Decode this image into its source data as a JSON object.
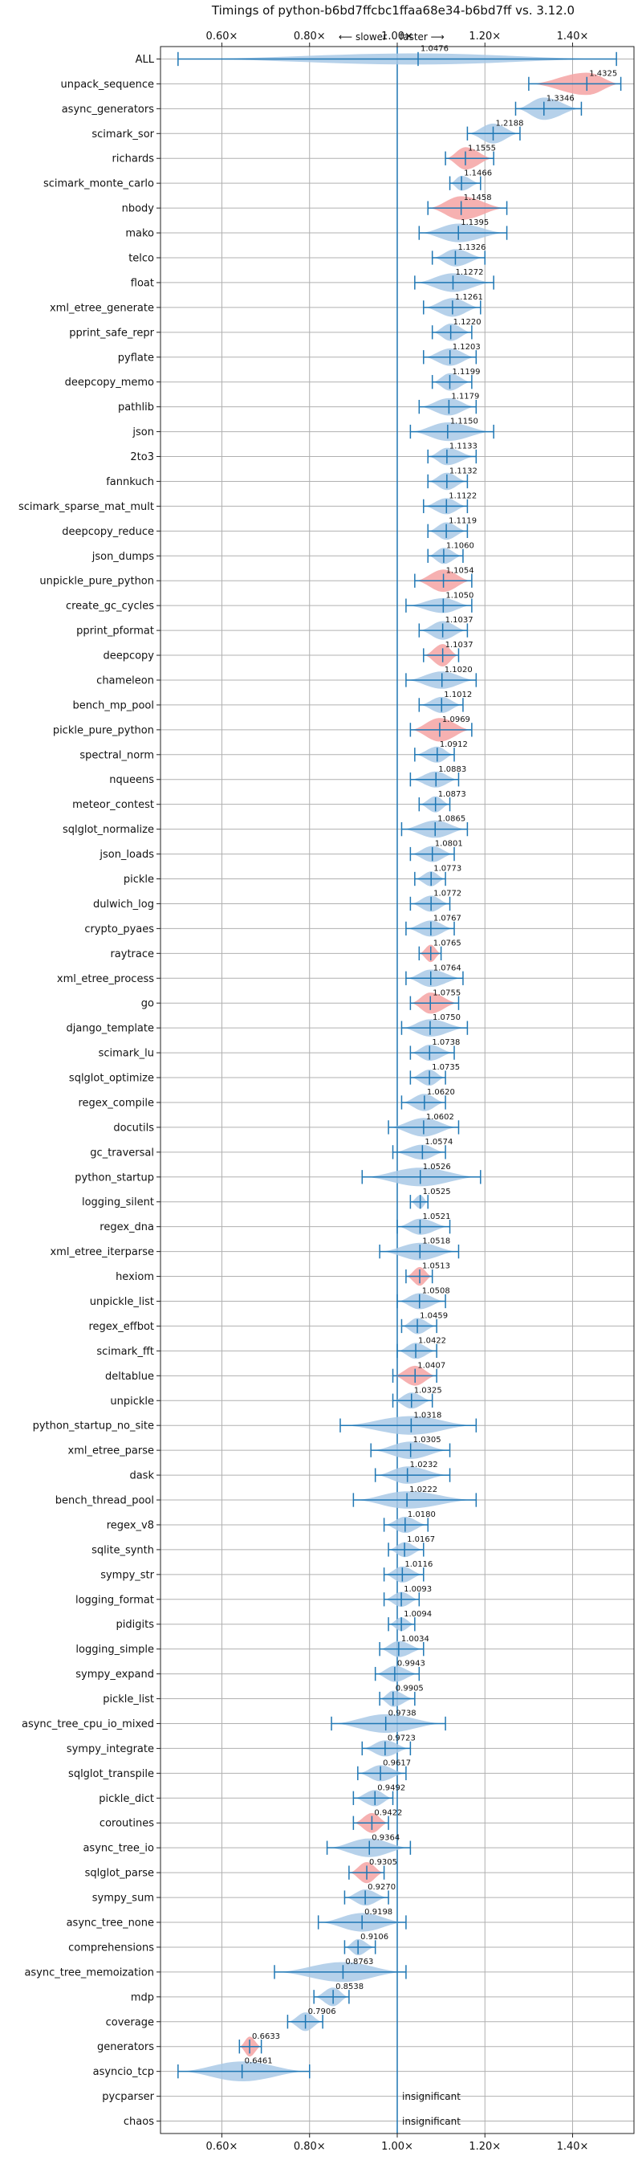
{
  "chart_data": {
    "type": "violin",
    "title": "Timings of python-b6bd7ffcbc1ffaa68e34-b6bd7ff vs. 3.12.0",
    "direction_labels": {
      "slower": "⟵ slower",
      "faster": "faster ⟶"
    },
    "xlim": [
      0.46,
      1.54
    ],
    "ticks": [
      {
        "v": 0.6,
        "label": "0.60×"
      },
      {
        "v": 0.8,
        "label": "0.80×"
      },
      {
        "v": 1.0,
        "label": "1.00×"
      },
      {
        "v": 1.2,
        "label": "1.20×"
      },
      {
        "v": 1.4,
        "label": "1.40×"
      }
    ],
    "reference_line": 1.0,
    "grid": true,
    "colors": {
      "normal": "#a9c9e6",
      "significant": "#f4a3a3",
      "line": "#1f77b4"
    },
    "insignificant_label": "insignificant",
    "benchmarks": [
      {
        "name": "ALL",
        "value": 1.0476,
        "value_label": "1.0476",
        "min": 0.5,
        "max": 1.5,
        "width": 0.45,
        "highlight": false
      },
      {
        "name": "unpack_sequence",
        "value": 1.4325,
        "value_label": "1.4325",
        "min": 1.3,
        "max": 1.51,
        "width": 0.9,
        "highlight": true
      },
      {
        "name": "async_generators",
        "value": 1.3346,
        "value_label": "1.3346",
        "min": 1.27,
        "max": 1.42,
        "width": 0.9,
        "highlight": false
      },
      {
        "name": "scimark_sor",
        "value": 1.2188,
        "value_label": "1.2188",
        "min": 1.16,
        "max": 1.28,
        "width": 0.8,
        "highlight": false
      },
      {
        "name": "richards",
        "value": 1.1555,
        "value_label": "1.1555",
        "min": 1.11,
        "max": 1.22,
        "width": 0.9,
        "highlight": true
      },
      {
        "name": "scimark_monte_carlo",
        "value": 1.1466,
        "value_label": "1.1466",
        "min": 1.12,
        "max": 1.19,
        "width": 0.6,
        "highlight": false
      },
      {
        "name": "nbody",
        "value": 1.1458,
        "value_label": "1.1458",
        "min": 1.07,
        "max": 1.25,
        "width": 0.95,
        "highlight": true
      },
      {
        "name": "mako",
        "value": 1.1395,
        "value_label": "1.1395",
        "min": 1.05,
        "max": 1.25,
        "width": 0.75,
        "highlight": false
      },
      {
        "name": "telco",
        "value": 1.1326,
        "value_label": "1.1326",
        "min": 1.08,
        "max": 1.2,
        "width": 0.7,
        "highlight": false
      },
      {
        "name": "float",
        "value": 1.1272,
        "value_label": "1.1272",
        "min": 1.04,
        "max": 1.22,
        "width": 0.75,
        "highlight": false
      },
      {
        "name": "xml_etree_generate",
        "value": 1.1261,
        "value_label": "1.1261",
        "min": 1.06,
        "max": 1.19,
        "width": 0.75,
        "highlight": false
      },
      {
        "name": "pprint_safe_repr",
        "value": 1.122,
        "value_label": "1.1220",
        "min": 1.08,
        "max": 1.17,
        "width": 0.7,
        "highlight": false
      },
      {
        "name": "pyflate",
        "value": 1.1203,
        "value_label": "1.1203",
        "min": 1.06,
        "max": 1.18,
        "width": 0.7,
        "highlight": false
      },
      {
        "name": "deepcopy_memo",
        "value": 1.1199,
        "value_label": "1.1199",
        "min": 1.08,
        "max": 1.17,
        "width": 0.7,
        "highlight": false
      },
      {
        "name": "pathlib",
        "value": 1.1179,
        "value_label": "1.1179",
        "min": 1.05,
        "max": 1.18,
        "width": 0.7,
        "highlight": false
      },
      {
        "name": "json",
        "value": 1.115,
        "value_label": "1.1150",
        "min": 1.03,
        "max": 1.22,
        "width": 0.75,
        "highlight": false
      },
      {
        "name": "2to3",
        "value": 1.1133,
        "value_label": "1.1133",
        "min": 1.07,
        "max": 1.18,
        "width": 0.7,
        "highlight": false
      },
      {
        "name": "fannkuch",
        "value": 1.1132,
        "value_label": "1.1132",
        "min": 1.07,
        "max": 1.16,
        "width": 0.7,
        "highlight": false
      },
      {
        "name": "scimark_sparse_mat_mult",
        "value": 1.1122,
        "value_label": "1.1122",
        "min": 1.06,
        "max": 1.16,
        "width": 0.65,
        "highlight": false
      },
      {
        "name": "deepcopy_reduce",
        "value": 1.1119,
        "value_label": "1.1119",
        "min": 1.07,
        "max": 1.16,
        "width": 0.7,
        "highlight": false
      },
      {
        "name": "json_dumps",
        "value": 1.106,
        "value_label": "1.1060",
        "min": 1.07,
        "max": 1.15,
        "width": 0.65,
        "highlight": false
      },
      {
        "name": "unpickle_pure_python",
        "value": 1.1054,
        "value_label": "1.1054",
        "min": 1.04,
        "max": 1.17,
        "width": 0.9,
        "highlight": true
      },
      {
        "name": "create_gc_cycles",
        "value": 1.105,
        "value_label": "1.1050",
        "min": 1.02,
        "max": 1.17,
        "width": 0.6,
        "highlight": false
      },
      {
        "name": "pprint_pformat",
        "value": 1.1037,
        "value_label": "1.1037",
        "min": 1.05,
        "max": 1.16,
        "width": 0.75,
        "highlight": false
      },
      {
        "name": "deepcopy",
        "value": 1.1037,
        "value_label": "1.1037",
        "min": 1.06,
        "max": 1.14,
        "width": 0.9,
        "highlight": true
      },
      {
        "name": "chameleon",
        "value": 1.102,
        "value_label": "1.1020",
        "min": 1.02,
        "max": 1.18,
        "width": 0.7,
        "highlight": false
      },
      {
        "name": "bench_mp_pool",
        "value": 1.1012,
        "value_label": "1.1012",
        "min": 1.05,
        "max": 1.15,
        "width": 0.65,
        "highlight": false
      },
      {
        "name": "pickle_pure_python",
        "value": 1.0969,
        "value_label": "1.0969",
        "min": 1.03,
        "max": 1.17,
        "width": 0.95,
        "highlight": true
      },
      {
        "name": "spectral_norm",
        "value": 1.0912,
        "value_label": "1.0912",
        "min": 1.04,
        "max": 1.13,
        "width": 0.65,
        "highlight": false
      },
      {
        "name": "nqueens",
        "value": 1.0883,
        "value_label": "1.0883",
        "min": 1.03,
        "max": 1.14,
        "width": 0.65,
        "highlight": false
      },
      {
        "name": "meteor_contest",
        "value": 1.0873,
        "value_label": "1.0873",
        "min": 1.05,
        "max": 1.12,
        "width": 0.65,
        "highlight": false
      },
      {
        "name": "sqlglot_normalize",
        "value": 1.0865,
        "value_label": "1.0865",
        "min": 1.01,
        "max": 1.16,
        "width": 0.7,
        "highlight": false
      },
      {
        "name": "json_loads",
        "value": 1.0801,
        "value_label": "1.0801",
        "min": 1.03,
        "max": 1.13,
        "width": 0.65,
        "highlight": false
      },
      {
        "name": "pickle",
        "value": 1.0773,
        "value_label": "1.0773",
        "min": 1.04,
        "max": 1.11,
        "width": 0.6,
        "highlight": false
      },
      {
        "name": "dulwich_log",
        "value": 1.0772,
        "value_label": "1.0772",
        "min": 1.03,
        "max": 1.12,
        "width": 0.65,
        "highlight": false
      },
      {
        "name": "crypto_pyaes",
        "value": 1.0767,
        "value_label": "1.0767",
        "min": 1.02,
        "max": 1.13,
        "width": 0.65,
        "highlight": false
      },
      {
        "name": "raytrace",
        "value": 1.0765,
        "value_label": "1.0765",
        "min": 1.05,
        "max": 1.1,
        "width": 0.7,
        "highlight": true
      },
      {
        "name": "xml_etree_process",
        "value": 1.0764,
        "value_label": "1.0764",
        "min": 1.02,
        "max": 1.15,
        "width": 0.7,
        "highlight": false
      },
      {
        "name": "go",
        "value": 1.0755,
        "value_label": "1.0755",
        "min": 1.03,
        "max": 1.14,
        "width": 0.85,
        "highlight": true
      },
      {
        "name": "django_template",
        "value": 1.075,
        "value_label": "1.0750",
        "min": 1.01,
        "max": 1.16,
        "width": 0.7,
        "highlight": false
      },
      {
        "name": "scimark_lu",
        "value": 1.0738,
        "value_label": "1.0738",
        "min": 1.03,
        "max": 1.13,
        "width": 0.65,
        "highlight": false
      },
      {
        "name": "sqlglot_optimize",
        "value": 1.0735,
        "value_label": "1.0735",
        "min": 1.03,
        "max": 1.11,
        "width": 0.65,
        "highlight": false
      },
      {
        "name": "regex_compile",
        "value": 1.062,
        "value_label": "1.0620",
        "min": 1.01,
        "max": 1.11,
        "width": 0.7,
        "highlight": false
      },
      {
        "name": "docutils",
        "value": 1.0602,
        "value_label": "1.0602",
        "min": 0.98,
        "max": 1.14,
        "width": 0.75,
        "highlight": false
      },
      {
        "name": "gc_traversal",
        "value": 1.0574,
        "value_label": "1.0574",
        "min": 0.99,
        "max": 1.11,
        "width": 0.6,
        "highlight": false
      },
      {
        "name": "python_startup",
        "value": 1.0526,
        "value_label": "1.0526",
        "min": 0.92,
        "max": 1.19,
        "width": 0.75,
        "highlight": false
      },
      {
        "name": "logging_silent",
        "value": 1.0525,
        "value_label": "1.0525",
        "min": 1.03,
        "max": 1.07,
        "width": 0.55,
        "highlight": false
      },
      {
        "name": "regex_dna",
        "value": 1.0521,
        "value_label": "1.0521",
        "min": 1.0,
        "max": 1.12,
        "width": 0.65,
        "highlight": false
      },
      {
        "name": "xml_etree_iterparse",
        "value": 1.0518,
        "value_label": "1.0518",
        "min": 0.96,
        "max": 1.14,
        "width": 0.7,
        "highlight": false
      },
      {
        "name": "hexiom",
        "value": 1.0513,
        "value_label": "1.0513",
        "min": 1.02,
        "max": 1.08,
        "width": 0.75,
        "highlight": true
      },
      {
        "name": "unpickle_list",
        "value": 1.0508,
        "value_label": "1.0508",
        "min": 1.0,
        "max": 1.11,
        "width": 0.65,
        "highlight": false
      },
      {
        "name": "regex_effbot",
        "value": 1.0459,
        "value_label": "1.0459",
        "min": 1.01,
        "max": 1.09,
        "width": 0.65,
        "highlight": false
      },
      {
        "name": "scimark_fft",
        "value": 1.0422,
        "value_label": "1.0422",
        "min": 1.0,
        "max": 1.09,
        "width": 0.65,
        "highlight": false
      },
      {
        "name": "deltablue",
        "value": 1.0407,
        "value_label": "1.0407",
        "min": 0.99,
        "max": 1.09,
        "width": 0.8,
        "highlight": true
      },
      {
        "name": "unpickle",
        "value": 1.0325,
        "value_label": "1.0325",
        "min": 0.99,
        "max": 1.08,
        "width": 0.65,
        "highlight": false
      },
      {
        "name": "python_startup_no_site",
        "value": 1.0318,
        "value_label": "1.0318",
        "min": 0.87,
        "max": 1.18,
        "width": 0.75,
        "highlight": false
      },
      {
        "name": "xml_etree_parse",
        "value": 1.0305,
        "value_label": "1.0305",
        "min": 0.94,
        "max": 1.12,
        "width": 0.7,
        "highlight": false
      },
      {
        "name": "dask",
        "value": 1.0232,
        "value_label": "1.0232",
        "min": 0.95,
        "max": 1.12,
        "width": 0.7,
        "highlight": false
      },
      {
        "name": "bench_thread_pool",
        "value": 1.0222,
        "value_label": "1.0222",
        "min": 0.9,
        "max": 1.18,
        "width": 0.7,
        "highlight": false
      },
      {
        "name": "regex_v8",
        "value": 1.018,
        "value_label": "1.0180",
        "min": 0.97,
        "max": 1.07,
        "width": 0.65,
        "highlight": false
      },
      {
        "name": "sqlite_synth",
        "value": 1.0167,
        "value_label": "1.0167",
        "min": 0.98,
        "max": 1.06,
        "width": 0.6,
        "highlight": false
      },
      {
        "name": "sympy_str",
        "value": 1.0116,
        "value_label": "1.0116",
        "min": 0.97,
        "max": 1.06,
        "width": 0.65,
        "highlight": false
      },
      {
        "name": "logging_format",
        "value": 1.0093,
        "value_label": "1.0093",
        "min": 0.97,
        "max": 1.05,
        "width": 0.6,
        "highlight": false
      },
      {
        "name": "pidigits",
        "value": 1.0094,
        "value_label": "1.0094",
        "min": 0.98,
        "max": 1.04,
        "width": 0.55,
        "highlight": false
      },
      {
        "name": "logging_simple",
        "value": 1.0034,
        "value_label": "1.0034",
        "min": 0.96,
        "max": 1.06,
        "width": 0.65,
        "highlight": false
      },
      {
        "name": "sympy_expand",
        "value": 0.9943,
        "value_label": "0.9943",
        "min": 0.95,
        "max": 1.05,
        "width": 0.65,
        "highlight": false
      },
      {
        "name": "pickle_list",
        "value": 0.9905,
        "value_label": "0.9905",
        "min": 0.96,
        "max": 1.04,
        "width": 0.65,
        "highlight": false
      },
      {
        "name": "async_tree_cpu_io_mixed",
        "value": 0.9738,
        "value_label": "0.9738",
        "min": 0.85,
        "max": 1.11,
        "width": 0.75,
        "highlight": false
      },
      {
        "name": "sympy_integrate",
        "value": 0.9723,
        "value_label": "0.9723",
        "min": 0.92,
        "max": 1.03,
        "width": 0.65,
        "highlight": false
      },
      {
        "name": "sqlglot_transpile",
        "value": 0.9617,
        "value_label": "0.9617",
        "min": 0.91,
        "max": 1.02,
        "width": 0.65,
        "highlight": false
      },
      {
        "name": "pickle_dict",
        "value": 0.9492,
        "value_label": "0.9492",
        "min": 0.9,
        "max": 0.99,
        "width": 0.65,
        "highlight": false
      },
      {
        "name": "coroutines",
        "value": 0.9422,
        "value_label": "0.9422",
        "min": 0.9,
        "max": 0.98,
        "width": 0.8,
        "highlight": true
      },
      {
        "name": "async_tree_io",
        "value": 0.9364,
        "value_label": "0.9364",
        "min": 0.84,
        "max": 1.03,
        "width": 0.75,
        "highlight": false
      },
      {
        "name": "sqlglot_parse",
        "value": 0.9305,
        "value_label": "0.9305",
        "min": 0.89,
        "max": 0.97,
        "width": 0.85,
        "highlight": true
      },
      {
        "name": "sympy_sum",
        "value": 0.927,
        "value_label": "0.9270",
        "min": 0.88,
        "max": 0.98,
        "width": 0.65,
        "highlight": false
      },
      {
        "name": "async_tree_none",
        "value": 0.9198,
        "value_label": "0.9198",
        "min": 0.82,
        "max": 1.02,
        "width": 0.75,
        "highlight": false
      },
      {
        "name": "comprehensions",
        "value": 0.9106,
        "value_label": "0.9106",
        "min": 0.88,
        "max": 0.95,
        "width": 0.65,
        "highlight": false
      },
      {
        "name": "async_tree_memoization",
        "value": 0.8763,
        "value_label": "0.8763",
        "min": 0.72,
        "max": 1.02,
        "width": 0.8,
        "highlight": false
      },
      {
        "name": "mdp",
        "value": 0.8538,
        "value_label": "0.8538",
        "min": 0.81,
        "max": 0.89,
        "width": 0.75,
        "highlight": false
      },
      {
        "name": "coverage",
        "value": 0.7906,
        "value_label": "0.7906",
        "min": 0.75,
        "max": 0.83,
        "width": 0.75,
        "highlight": false
      },
      {
        "name": "generators",
        "value": 0.6633,
        "value_label": "0.6633",
        "min": 0.64,
        "max": 0.69,
        "width": 0.8,
        "highlight": true
      },
      {
        "name": "asyncio_tcp",
        "value": 0.6461,
        "value_label": "0.6461",
        "min": 0.5,
        "max": 0.8,
        "width": 0.8,
        "highlight": false
      },
      {
        "name": "pycparser",
        "insignificant": true
      },
      {
        "name": "chaos",
        "insignificant": true
      }
    ]
  }
}
